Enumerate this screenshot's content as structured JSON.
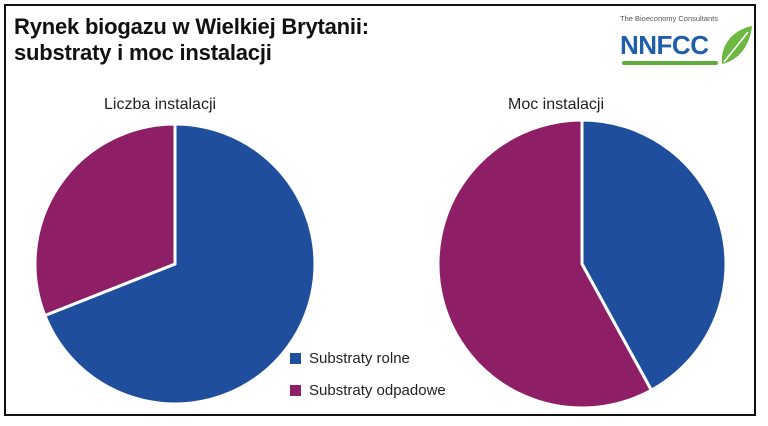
{
  "header": {
    "title_line1": "Rynek biogazu w Wielkiej Brytanii:",
    "title_line2": "substraty i moc instalacji"
  },
  "logo": {
    "tagline": "The Bioeconomy Consultants",
    "wordmark": "NNFCC",
    "icon": "leaf-icon"
  },
  "colors": {
    "agricultural": "#1f4f9c",
    "waste": "#8e1f66",
    "logo_blue": "#1f5ea8",
    "logo_green": "#5fae3d"
  },
  "chart_data": [
    {
      "type": "pie",
      "title": "Liczba instalacji",
      "categories": [
        "Substraty rolne",
        "Substraty odpadowe"
      ],
      "values": [
        69,
        31
      ]
    },
    {
      "type": "pie",
      "title": "Moc instalacji",
      "categories": [
        "Substraty rolne",
        "Substraty odpadowe"
      ],
      "values": [
        42,
        58
      ]
    }
  ],
  "legend": {
    "placement": "bottom-center",
    "items": [
      {
        "label": "Substraty rolne"
      },
      {
        "label": "Substraty odpadowe"
      }
    ]
  }
}
